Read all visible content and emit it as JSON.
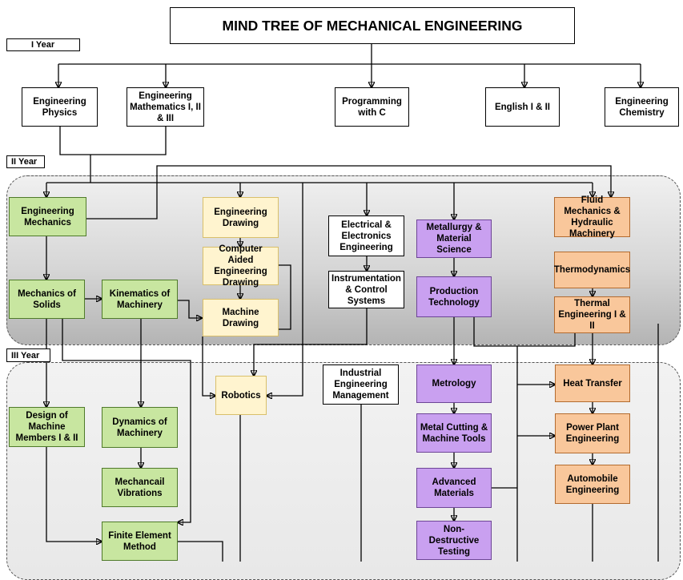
{
  "title": "MIND TREE OF MECHANICAL ENGINEERING",
  "years": {
    "first": "I Year",
    "second": "II Year",
    "third": "III Year"
  },
  "nodes": {
    "eng_physics": "Engineering Physics",
    "eng_maths": "Engineering Mathematics I, II & III",
    "programming_c": "Programming with C",
    "english": "English I & II",
    "eng_chemistry": "Engineering Chemistry",
    "eng_mechanics": "Engineering Mechanics",
    "eng_drawing": "Engineering Drawing",
    "cad": "Computer Aided Engineering Drawing",
    "machine_drawing": "Machine Drawing",
    "eee": "Electrical & Electronics Engineering",
    "instrumentation": "Instrumentation & Control Systems",
    "metallurgy": "Metallurgy & Material Science",
    "production_tech": "Production Technology",
    "fluid_mechanics": "Fluid Mechanics & Hydraulic Machinery",
    "thermodynamics": "Thermodynamics",
    "thermal_eng": "Thermal Engineering I & II",
    "mech_solids": "Mechanics of Solids",
    "kinematics": "Kinematics of Machinery",
    "design_machine": "Design of Machine Members I & II",
    "dynamics": "Dynamics of Machinery",
    "vibrations": "Mechancail Vibrations",
    "fem": "Finite Element Method",
    "robotics": "Robotics",
    "iem": "Industrial Engineering Management",
    "metrology": "Metrology",
    "metal_cutting": "Metal Cutting & Machine Tools",
    "adv_materials": "Advanced Materials",
    "ndt": "Non-Destructive Testing",
    "heat_transfer": "Heat Transfer",
    "power_plant": "Power Plant Engineering",
    "automobile": "Automobile Engineering"
  }
}
